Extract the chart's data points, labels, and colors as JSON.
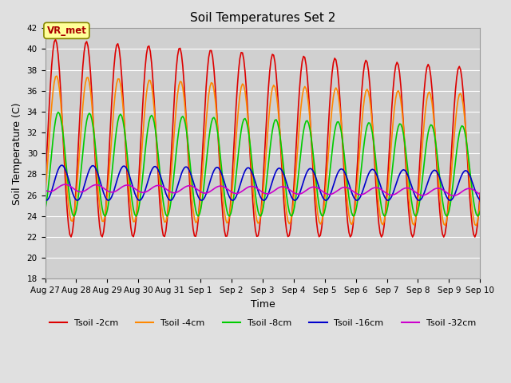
{
  "title": "Soil Temperatures Set 2",
  "xlabel": "Time",
  "ylabel": "Soil Temperature (C)",
  "ylim": [
    18,
    42
  ],
  "yticks": [
    18,
    20,
    22,
    24,
    26,
    28,
    30,
    32,
    34,
    36,
    38,
    40,
    42
  ],
  "fig_bg": "#e0e0e0",
  "plot_bg": "#d0d0d0",
  "annotation_text": "VR_met",
  "annotation_bg": "#ffff99",
  "annotation_border": "#aa0000",
  "x_labels": [
    "Aug 27",
    "Aug 28",
    "Aug 29",
    "Aug 30",
    "Aug 31",
    "Sep 1",
    "Sep 2",
    "Sep 3",
    "Sep 4",
    "Sep 5",
    "Sep 6",
    "Sep 7",
    "Sep 8",
    "Sep 9",
    "Sep 10"
  ],
  "series": {
    "Tsoil -2cm": {
      "color": "#dd0000",
      "lw": 1.2
    },
    "Tsoil -4cm": {
      "color": "#ff8800",
      "lw": 1.2
    },
    "Tsoil -8cm": {
      "color": "#00cc00",
      "lw": 1.2
    },
    "Tsoil -16cm": {
      "color": "#0000cc",
      "lw": 1.2
    },
    "Tsoil -32cm": {
      "color": "#cc00cc",
      "lw": 1.2
    }
  },
  "legend_order": [
    "Tsoil -2cm",
    "Tsoil -4cm",
    "Tsoil -8cm",
    "Tsoil -16cm",
    "Tsoil -32cm"
  ]
}
